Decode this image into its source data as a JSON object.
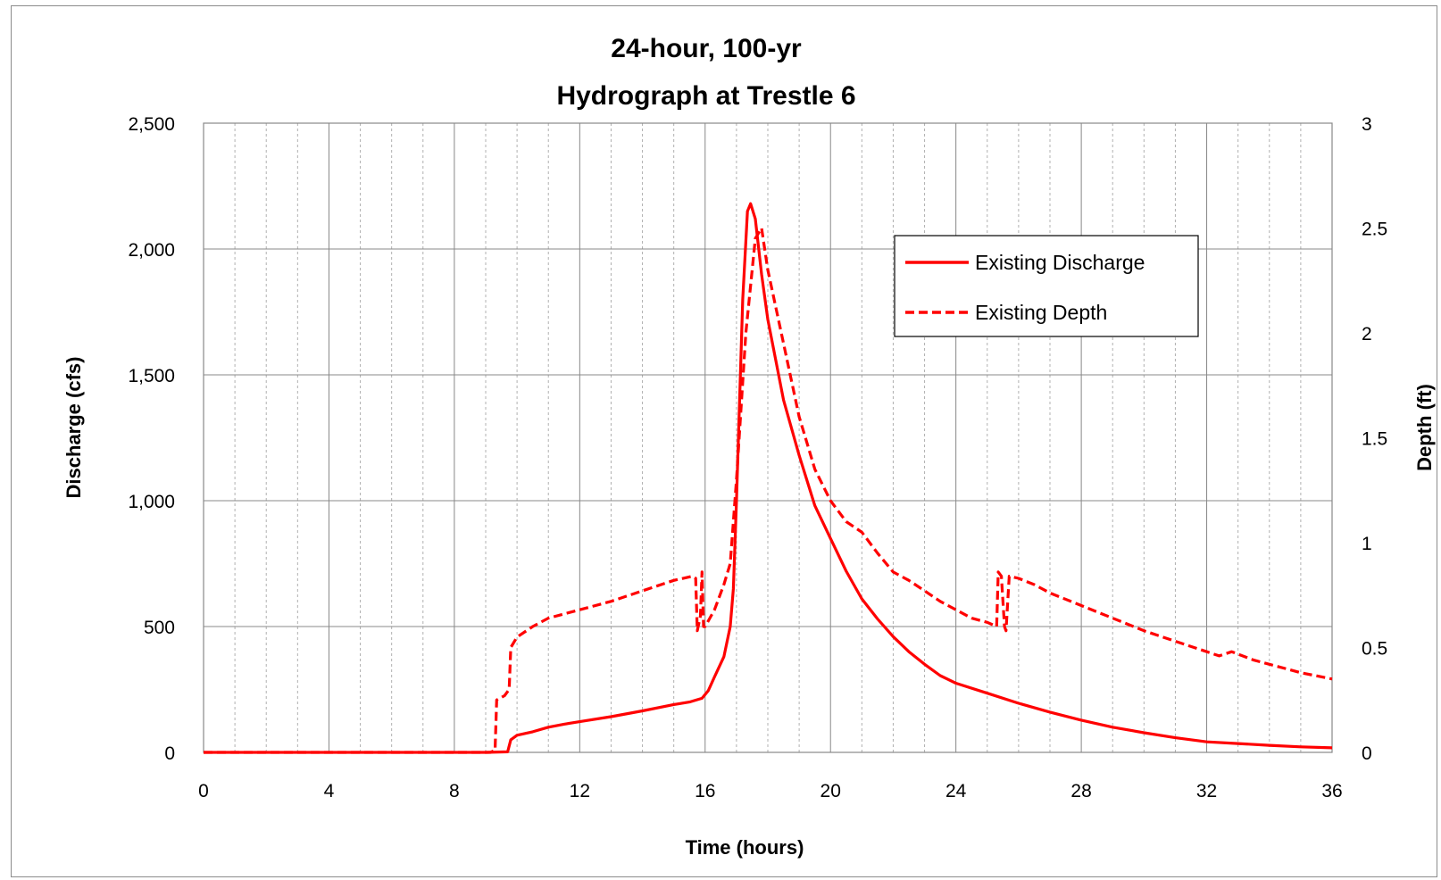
{
  "chart_data": {
    "type": "line",
    "title": [
      "24-hour, 100-yr",
      "Hydrograph at Trestle 6"
    ],
    "xlabel": "Time (hours)",
    "ylabel": "Discharge (cfs)",
    "y2label": "Depth (ft)",
    "xlim": [
      0,
      36
    ],
    "ylim": [
      0,
      2500
    ],
    "y2lim": [
      0,
      3
    ],
    "x_ticks": [
      "0",
      "4",
      "8",
      "12",
      "16",
      "20",
      "24",
      "28",
      "32",
      "36"
    ],
    "y_ticks": [
      "0",
      "500",
      "1,000",
      "1,500",
      "2,000",
      "2,500"
    ],
    "y2_ticks": [
      "0",
      "0.5",
      "1",
      "1.5",
      "2",
      "2.5",
      "3"
    ],
    "grid": true,
    "legend_position": "top-right",
    "colors": {
      "series": "#ff0000",
      "grid": "#888888",
      "minor_grid": "#b0b0b0"
    },
    "series": [
      {
        "name": "Existing Discharge",
        "axis": "left",
        "style": "solid",
        "points": [
          [
            0,
            0
          ],
          [
            9.0,
            0
          ],
          [
            9.7,
            2
          ],
          [
            9.8,
            50
          ],
          [
            10.0,
            68
          ],
          [
            10.5,
            82
          ],
          [
            11.0,
            100
          ],
          [
            11.5,
            112
          ],
          [
            12.0,
            122
          ],
          [
            13.0,
            142
          ],
          [
            14.0,
            165
          ],
          [
            15.0,
            190
          ],
          [
            15.5,
            200
          ],
          [
            15.9,
            215
          ],
          [
            16.1,
            245
          ],
          [
            16.3,
            300
          ],
          [
            16.6,
            380
          ],
          [
            16.8,
            500
          ],
          [
            16.9,
            650
          ],
          [
            17.0,
            1000
          ],
          [
            17.2,
            1800
          ],
          [
            17.35,
            2150
          ],
          [
            17.45,
            2180
          ],
          [
            17.6,
            2120
          ],
          [
            17.8,
            1900
          ],
          [
            18.0,
            1720
          ],
          [
            18.5,
            1400
          ],
          [
            19.0,
            1180
          ],
          [
            19.5,
            980
          ],
          [
            20.0,
            850
          ],
          [
            20.5,
            720
          ],
          [
            21.0,
            610
          ],
          [
            21.5,
            530
          ],
          [
            22.0,
            460
          ],
          [
            22.5,
            400
          ],
          [
            23.0,
            350
          ],
          [
            23.5,
            305
          ],
          [
            24.0,
            275
          ],
          [
            25.0,
            235
          ],
          [
            26.0,
            195
          ],
          [
            27.0,
            160
          ],
          [
            28.0,
            128
          ],
          [
            29.0,
            100
          ],
          [
            30.0,
            78
          ],
          [
            31.0,
            58
          ],
          [
            32.0,
            42
          ],
          [
            33.0,
            35
          ],
          [
            34.0,
            28
          ],
          [
            35.0,
            22
          ],
          [
            36.0,
            18
          ]
        ]
      },
      {
        "name": "Existing Depth",
        "axis": "right",
        "style": "dashed",
        "points": [
          [
            0,
            0
          ],
          [
            9.15,
            0
          ],
          [
            9.3,
            0.01
          ],
          [
            9.35,
            0.25
          ],
          [
            9.6,
            0.27
          ],
          [
            9.65,
            0.28
          ],
          [
            9.75,
            0.3
          ],
          [
            9.8,
            0.5
          ],
          [
            10.0,
            0.55
          ],
          [
            10.5,
            0.6
          ],
          [
            11.0,
            0.64
          ],
          [
            11.5,
            0.66
          ],
          [
            12.0,
            0.68
          ],
          [
            13.0,
            0.72
          ],
          [
            14.0,
            0.77
          ],
          [
            15.0,
            0.82
          ],
          [
            15.6,
            0.84
          ],
          [
            15.7,
            0.83
          ],
          [
            15.75,
            0.58
          ],
          [
            15.85,
            0.65
          ],
          [
            15.9,
            0.86
          ],
          [
            15.95,
            0.6
          ],
          [
            16.0,
            0.6
          ],
          [
            16.3,
            0.68
          ],
          [
            16.6,
            0.8
          ],
          [
            16.8,
            0.9
          ],
          [
            17.0,
            1.3
          ],
          [
            17.3,
            2.0
          ],
          [
            17.6,
            2.45
          ],
          [
            17.8,
            2.5
          ],
          [
            18.0,
            2.3
          ],
          [
            18.5,
            1.95
          ],
          [
            19.0,
            1.6
          ],
          [
            19.5,
            1.35
          ],
          [
            20.0,
            1.2
          ],
          [
            20.5,
            1.1
          ],
          [
            21.0,
            1.05
          ],
          [
            21.5,
            0.95
          ],
          [
            22.0,
            0.86
          ],
          [
            22.5,
            0.82
          ],
          [
            23.0,
            0.77
          ],
          [
            23.5,
            0.72
          ],
          [
            24.0,
            0.68
          ],
          [
            24.5,
            0.64
          ],
          [
            25.0,
            0.62
          ],
          [
            25.3,
            0.6
          ],
          [
            25.35,
            0.86
          ],
          [
            25.45,
            0.84
          ],
          [
            25.55,
            0.6
          ],
          [
            25.6,
            0.58
          ],
          [
            25.7,
            0.84
          ],
          [
            26.0,
            0.83
          ],
          [
            26.5,
            0.8
          ],
          [
            27.0,
            0.76
          ],
          [
            28.0,
            0.7
          ],
          [
            29.0,
            0.64
          ],
          [
            30.0,
            0.58
          ],
          [
            31.0,
            0.53
          ],
          [
            32.0,
            0.48
          ],
          [
            32.4,
            0.46
          ],
          [
            32.8,
            0.48
          ],
          [
            33.5,
            0.44
          ],
          [
            34.0,
            0.42
          ],
          [
            35.0,
            0.38
          ],
          [
            36.0,
            0.35
          ]
        ]
      }
    ]
  }
}
